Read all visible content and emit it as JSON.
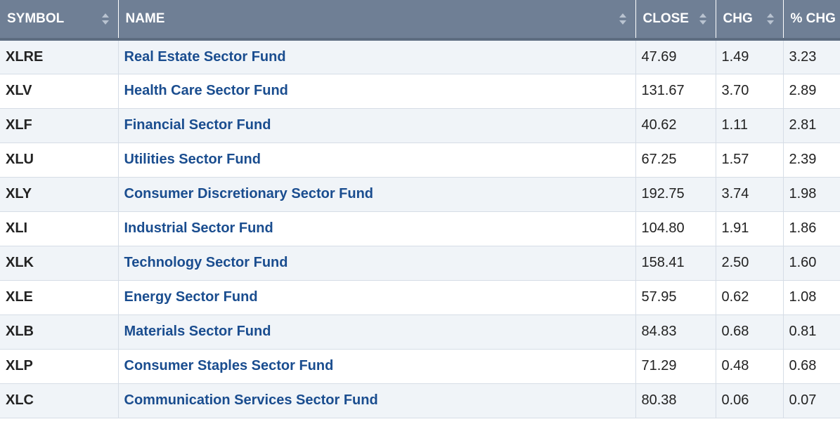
{
  "headers": {
    "symbol": "SYMBOL",
    "name": "NAME",
    "close": "CLOSE",
    "chg": "CHG",
    "pct_chg": "% CHG"
  },
  "colors": {
    "header_bg": "#6f7f95",
    "link": "#1a4d8f",
    "row_alt": "#f0f4f8"
  },
  "icons": {
    "sort": "sort-updown-icon"
  },
  "rows": [
    {
      "symbol": "XLRE",
      "name": "Real Estate Sector Fund",
      "close": "47.69",
      "chg": "1.49",
      "pct_chg": "3.23"
    },
    {
      "symbol": "XLV",
      "name": "Health Care Sector Fund",
      "close": "131.67",
      "chg": "3.70",
      "pct_chg": "2.89"
    },
    {
      "symbol": "XLF",
      "name": "Financial Sector Fund",
      "close": "40.62",
      "chg": "1.11",
      "pct_chg": "2.81"
    },
    {
      "symbol": "XLU",
      "name": "Utilities Sector Fund",
      "close": "67.25",
      "chg": "1.57",
      "pct_chg": "2.39"
    },
    {
      "symbol": "XLY",
      "name": "Consumer Discretionary Sector Fund",
      "close": "192.75",
      "chg": "3.74",
      "pct_chg": "1.98"
    },
    {
      "symbol": "XLI",
      "name": "Industrial Sector Fund",
      "close": "104.80",
      "chg": "1.91",
      "pct_chg": "1.86"
    },
    {
      "symbol": "XLK",
      "name": "Technology Sector Fund",
      "close": "158.41",
      "chg": "2.50",
      "pct_chg": "1.60"
    },
    {
      "symbol": "XLE",
      "name": "Energy Sector Fund",
      "close": "57.95",
      "chg": "0.62",
      "pct_chg": "1.08"
    },
    {
      "symbol": "XLB",
      "name": "Materials Sector Fund",
      "close": "84.83",
      "chg": "0.68",
      "pct_chg": "0.81"
    },
    {
      "symbol": "XLP",
      "name": "Consumer Staples Sector Fund",
      "close": "71.29",
      "chg": "0.48",
      "pct_chg": "0.68"
    },
    {
      "symbol": "XLC",
      "name": "Communication Services Sector Fund",
      "close": "80.38",
      "chg": "0.06",
      "pct_chg": "0.07"
    }
  ]
}
